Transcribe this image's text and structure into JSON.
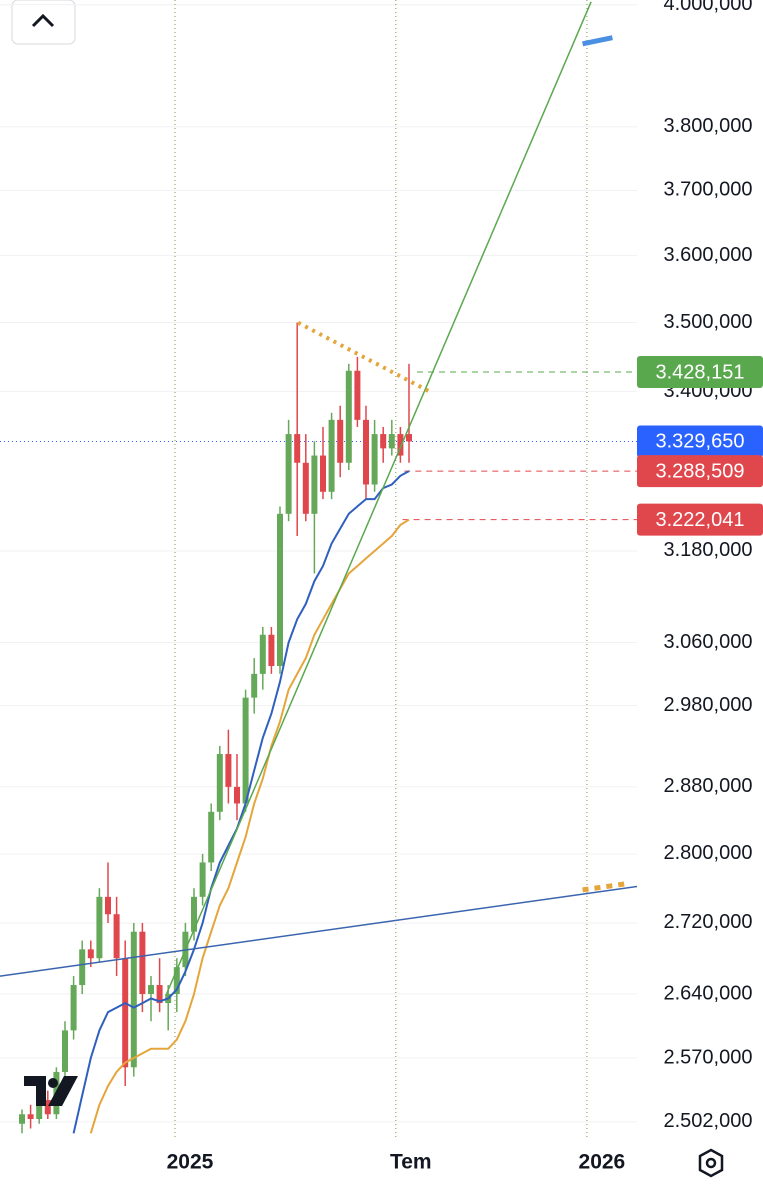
{
  "chart_data": {
    "type": "candlestick",
    "log_scale": true,
    "grid": true,
    "up_color": "#66a85a",
    "down_color": "#e0474c",
    "xlim": [
      -2.6,
      72.4
    ],
    "xticks": [
      {
        "value": 18,
        "label": "2025"
      },
      {
        "value": 44,
        "label": "Tem"
      },
      {
        "value": 66.5,
        "label": "2026"
      }
    ],
    "ylim": [
      2483000,
      4008000
    ],
    "yticks": [
      {
        "value": 4000000,
        "label": "4.000,000"
      },
      {
        "value": 3800000,
        "label": "3.800,000"
      },
      {
        "value": 3700000,
        "label": "3.700,000"
      },
      {
        "value": 3600000,
        "label": "3.600,000"
      },
      {
        "value": 3500000,
        "label": "3.500,000"
      },
      {
        "value": 3400000,
        "label": "3.400,000"
      },
      {
        "value": 3180000,
        "label": "3.180,000"
      },
      {
        "value": 3060000,
        "label": "3.060,000"
      },
      {
        "value": 2980000,
        "label": "2.980,000"
      },
      {
        "value": 2880000,
        "label": "2.880,000"
      },
      {
        "value": 2800000,
        "label": "2.800,000"
      },
      {
        "value": 2720000,
        "label": "2.720,000"
      },
      {
        "value": 2640000,
        "label": "2.640,000"
      },
      {
        "value": 2570000,
        "label": "2.570,000"
      },
      {
        "value": 2502000,
        "label": "2.502,000"
      }
    ],
    "open": [
      2500000,
      2510000,
      2505000,
      2525000,
      2510000,
      2555000,
      2600000,
      2650000,
      2690000,
      2680000,
      2750000,
      2730000,
      2680000,
      2560000,
      2710000,
      2640000,
      2650000,
      2630000,
      2640000,
      2670000,
      2710000,
      2750000,
      2790000,
      2850000,
      2920000,
      2880000,
      2860000,
      2990000,
      3020000,
      3070000,
      3030000,
      3230000,
      3340000,
      3300000,
      3230000,
      3310000,
      3260000,
      3360000,
      3300000,
      3430000,
      3360000,
      3270000,
      3340000,
      3320000,
      3340000,
      3340000
    ],
    "high": [
      2515000,
      2520000,
      2530000,
      2535000,
      2560000,
      2610000,
      2660000,
      2700000,
      2700000,
      2760000,
      2790000,
      2750000,
      2700000,
      2720000,
      2720000,
      2660000,
      2680000,
      2650000,
      2680000,
      2720000,
      2760000,
      2800000,
      2860000,
      2930000,
      2950000,
      2920000,
      3000000,
      3040000,
      3080000,
      3080000,
      3240000,
      3360000,
      3500000,
      3340000,
      3330000,
      3350000,
      3370000,
      3380000,
      3440000,
      3450000,
      3380000,
      3360000,
      3350000,
      3360000,
      3350000,
      3440000
    ],
    "low": [
      2490000,
      2495000,
      2500000,
      2505000,
      2505000,
      2550000,
      2590000,
      2640000,
      2670000,
      2675000,
      2720000,
      2660000,
      2540000,
      2550000,
      2620000,
      2610000,
      2620000,
      2600000,
      2620000,
      2660000,
      2700000,
      2740000,
      2780000,
      2840000,
      2860000,
      2840000,
      2850000,
      2970000,
      3000000,
      3020000,
      3020000,
      3220000,
      3200000,
      3220000,
      3150000,
      3250000,
      3250000,
      3280000,
      3290000,
      3350000,
      3250000,
      3260000,
      3300000,
      3310000,
      3300000,
      3300000
    ],
    "close": [
      2510000,
      2505000,
      2525000,
      2510000,
      2555000,
      2600000,
      2650000,
      2690000,
      2680000,
      2750000,
      2730000,
      2680000,
      2560000,
      2710000,
      2640000,
      2650000,
      2630000,
      2640000,
      2670000,
      2710000,
      2750000,
      2790000,
      2850000,
      2920000,
      2880000,
      2860000,
      2990000,
      3020000,
      3070000,
      3030000,
      3230000,
      3340000,
      3300000,
      3230000,
      3310000,
      3260000,
      3360000,
      3300000,
      3430000,
      3360000,
      3270000,
      3340000,
      3320000,
      3340000,
      3310000,
      3329650
    ],
    "series": [
      {
        "color": "#2f5fbf",
        "values": [
          null,
          null,
          null,
          null,
          null,
          null,
          2490000,
          2530000,
          2570000,
          2600000,
          2620000,
          2625000,
          2630000,
          2625000,
          2630000,
          2635000,
          2632000,
          2635000,
          2645000,
          2665000,
          2690000,
          2720000,
          2760000,
          2790000,
          2810000,
          2830000,
          2860000,
          2900000,
          2940000,
          2970000,
          3010000,
          3060000,
          3090000,
          3110000,
          3140000,
          3160000,
          3190000,
          3210000,
          3230000,
          3240000,
          3250000,
          3250000,
          3265000,
          3270000,
          3282000,
          3288509
        ]
      },
      {
        "color": "#e5a53a",
        "values": [
          null,
          null,
          null,
          null,
          null,
          null,
          null,
          null,
          2490000,
          2520000,
          2540000,
          2555000,
          2565000,
          2570000,
          2575000,
          2580000,
          2580000,
          2580000,
          2590000,
          2610000,
          2640000,
          2680000,
          2710000,
          2740000,
          2760000,
          2790000,
          2820000,
          2860000,
          2890000,
          2930000,
          2960000,
          3000000,
          3020000,
          3040000,
          3070000,
          3090000,
          3110000,
          3130000,
          3150000,
          3160000,
          3170000,
          3180000,
          3190000,
          3200000,
          3215000,
          3222041
        ]
      }
    ],
    "trendlines": [
      {
        "color": "#5aa84e",
        "width": 1.5,
        "dash": "none",
        "x": [
          17,
          67
        ],
        "y": [
          2640000,
          4005000
        ]
      },
      {
        "color": "#3a64b0",
        "width": 1.5,
        "dash": "none",
        "x": [
          -2.6,
          72.4
        ],
        "y": [
          2660000,
          2762000
        ]
      },
      {
        "color": "#e5a53a",
        "width": 4,
        "dash": "3 5",
        "x": [
          32.5,
          48
        ],
        "y": [
          3500000,
          3400000
        ]
      },
      {
        "color": "#e5a53a",
        "width": 5,
        "dash": "6 6",
        "x": [
          66,
          71
        ],
        "y": [
          2758000,
          2765000
        ]
      },
      {
        "color": "#4a90e2",
        "width": 5,
        "dash": "none",
        "x": [
          66,
          69.5
        ],
        "y": [
          3935000,
          3945000
        ]
      }
    ],
    "price_lines": [
      {
        "value": 3428151,
        "label": "3.428,151",
        "color": "#5aa84e",
        "from": 46.5,
        "dash": "6 5"
      },
      {
        "value": 3329650,
        "label": "3.329,650",
        "color": "#2962ff",
        "from": -2.6,
        "dash": "1 3"
      },
      {
        "value": 3288509,
        "label": "3.288,509",
        "color": "#e0474c",
        "from": 45,
        "dash": "6 5"
      },
      {
        "value": 3222041,
        "label": "3.222,041",
        "color": "#e0474c",
        "from": 44.8,
        "dash": "6 5"
      }
    ]
  }
}
